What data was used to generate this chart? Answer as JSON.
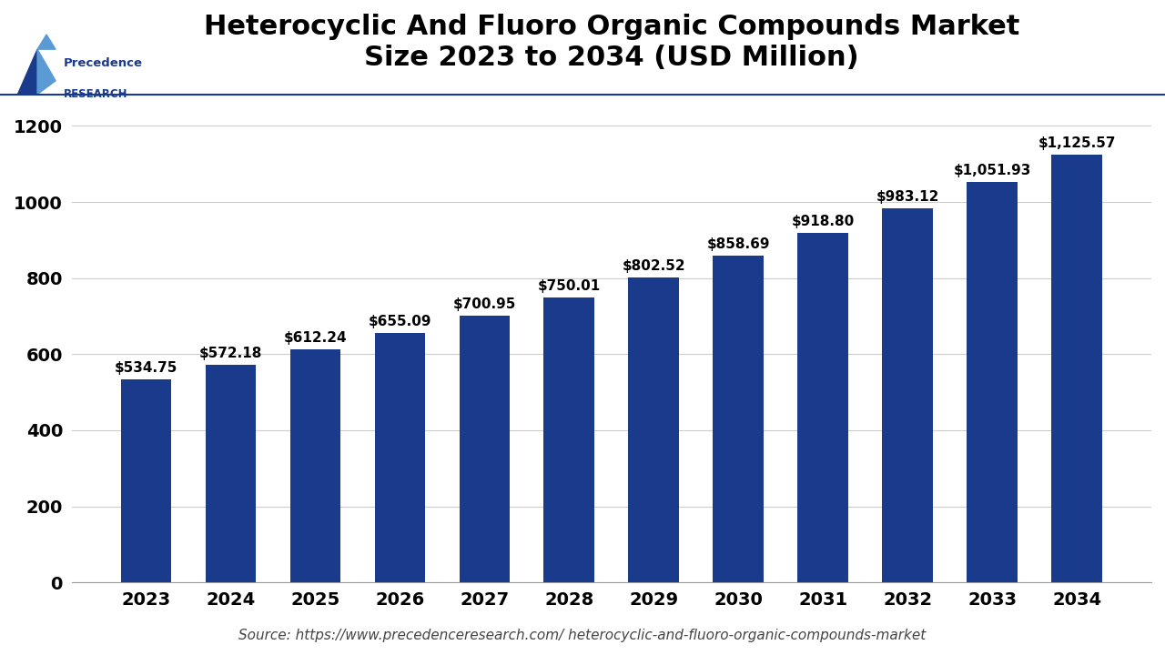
{
  "title": "Heterocyclic And Fluoro Organic Compounds Market\nSize 2023 to 2034 (USD Million)",
  "years": [
    2023,
    2024,
    2025,
    2026,
    2027,
    2028,
    2029,
    2030,
    2031,
    2032,
    2033,
    2034
  ],
  "values": [
    534.75,
    572.18,
    612.24,
    655.09,
    700.95,
    750.01,
    802.52,
    858.69,
    918.8,
    983.12,
    1051.93,
    1125.57
  ],
  "labels": [
    "$534.75",
    "$572.18",
    "$612.24",
    "$655.09",
    "$700.95",
    "$750.01",
    "$802.52",
    "$858.69",
    "$918.80",
    "$983.12",
    "$1,051.93",
    "$1,125.57"
  ],
  "bar_color": "#1a3a8c",
  "background_color": "#ffffff",
  "yticks": [
    0,
    200,
    400,
    600,
    800,
    1000,
    1200
  ],
  "ylim": [
    0,
    1300
  ],
  "source_text": "Source: https://www.precedenceresearch.com/ heterocyclic-and-fluoro-organic-compounds-market",
  "title_fontsize": 22,
  "tick_fontsize": 14,
  "label_fontsize": 11,
  "source_fontsize": 11,
  "logo_text1": "Precedence",
  "logo_text2": "RESEARCH",
  "logo_color_dark": "#1a3a8c",
  "logo_color_light": "#5b9bd5",
  "separator_color": "#1a3a8c",
  "grid_color": "#cccccc",
  "source_color": "#444444"
}
